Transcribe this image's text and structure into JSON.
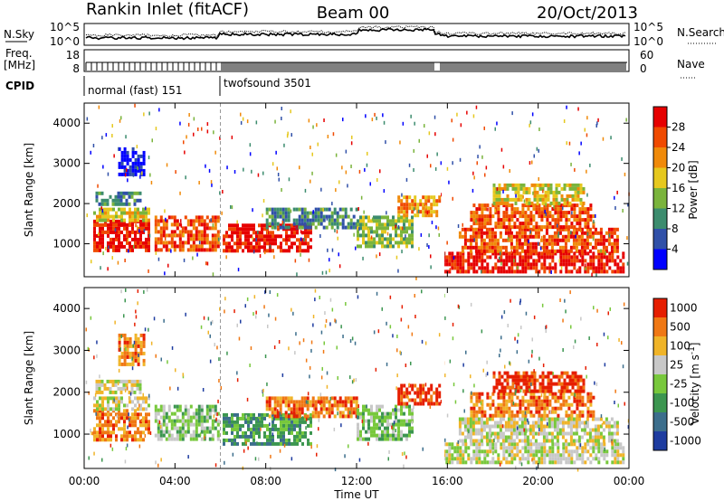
{
  "header": {
    "title_left": "Rankin Inlet (fitACF)",
    "title_center": "Beam 00",
    "title_right": "20/Oct/2013"
  },
  "strip_panels": {
    "sky": {
      "left_label": "N.Sky",
      "right_label": "N.Search",
      "left_ticks": [
        "10^5",
        "10^0"
      ],
      "right_ticks": [
        "10^5",
        "10^0"
      ]
    },
    "freq": {
      "left_label_line1": "Freq.",
      "left_label_line2": "[MHz]",
      "right_label": "Nave",
      "left_ticks": [
        "18",
        "8"
      ],
      "right_ticks": [
        "60",
        "0"
      ]
    },
    "cpid": {
      "label": "CPID",
      "modes": [
        {
          "name": "normal (fast) 151",
          "start_hour": 0.3
        },
        {
          "name": "twofsound 3501",
          "start_hour": 6.0
        }
      ]
    }
  },
  "chart_data": [
    {
      "type": "heatmap",
      "variable": "power",
      "ylabel": "Slant Range [km]",
      "yticks": [
        1000,
        2000,
        3000,
        4000
      ],
      "ylim": [
        180,
        4500
      ],
      "xlim": [
        0,
        24
      ],
      "colorbar": {
        "label": "Power [dB]",
        "ticks": [
          "4",
          "8",
          "12",
          "16",
          "20",
          "24",
          "28"
        ],
        "colors": [
          "#0000ff",
          "#3050a8",
          "#3c8c6e",
          "#7ab43c",
          "#e6c81e",
          "#f08a0a",
          "#f04a00",
          "#e60000"
        ]
      },
      "echo_regions": [
        {
          "x": [
            0.4,
            2.9
          ],
          "y": [
            850,
            1600
          ],
          "level": 7
        },
        {
          "x": [
            0.4,
            2.9
          ],
          "y": [
            1600,
            1900
          ],
          "level": 4
        },
        {
          "x": [
            0.5,
            2.5
          ],
          "y": [
            2000,
            2300
          ],
          "level": 2
        },
        {
          "x": [
            1.5,
            2.6
          ],
          "y": [
            2700,
            3400
          ],
          "level": 0
        },
        {
          "x": [
            3.1,
            5.9
          ],
          "y": [
            850,
            1700
          ],
          "level": 6
        },
        {
          "x": [
            6.1,
            10.0
          ],
          "y": [
            800,
            1500
          ],
          "level": 7
        },
        {
          "x": [
            8.0,
            12.0
          ],
          "y": [
            1400,
            1900
          ],
          "level": 2
        },
        {
          "x": [
            12.0,
            14.5
          ],
          "y": [
            900,
            1700
          ],
          "level": 3
        },
        {
          "x": [
            13.8,
            15.6
          ],
          "y": [
            1700,
            2200
          ],
          "level": 5
        },
        {
          "x": [
            15.8,
            23.8
          ],
          "y": [
            300,
            800
          ],
          "level": 7
        },
        {
          "x": [
            16.5,
            23.5
          ],
          "y": [
            800,
            1400
          ],
          "level": 6
        },
        {
          "x": [
            17.0,
            22.5
          ],
          "y": [
            1400,
            2000
          ],
          "level": 6
        },
        {
          "x": [
            18.0,
            22.0
          ],
          "y": [
            2000,
            2500
          ],
          "level": 4
        }
      ]
    },
    {
      "type": "heatmap",
      "variable": "velocity",
      "ylabel": "Slant Range [km]",
      "yticks": [
        1000,
        2000,
        3000,
        4000
      ],
      "ylim": [
        180,
        4500
      ],
      "xlim": [
        0,
        24
      ],
      "xticks": [
        "00:00",
        "04:00",
        "08:00",
        "12:00",
        "16:00",
        "20:00",
        "00:00"
      ],
      "xlabel": "Time UT",
      "colorbar": {
        "label": "Velocity [m s^-1]",
        "ticks": [
          "1000",
          "500",
          "100",
          "25",
          "-25",
          "-100",
          "-500",
          "-1000"
        ],
        "colors": [
          "#1e3ca0",
          "#3c6e8c",
          "#3c9650",
          "#78c83c",
          "#c8c8c8",
          "#f0b428",
          "#f07814",
          "#e61e00"
        ]
      },
      "echo_regions": [
        {
          "x": [
            0.4,
            2.9
          ],
          "y": [
            850,
            1600
          ],
          "level": 6
        },
        {
          "x": [
            0.4,
            2.9
          ],
          "y": [
            1600,
            1900
          ],
          "level": 4
        },
        {
          "x": [
            0.5,
            2.5
          ],
          "y": [
            2000,
            2300
          ],
          "level": 4
        },
        {
          "x": [
            1.5,
            2.6
          ],
          "y": [
            2700,
            3400
          ],
          "level": 6
        },
        {
          "x": [
            3.1,
            5.9
          ],
          "y": [
            850,
            1700
          ],
          "level": 3
        },
        {
          "x": [
            6.1,
            10.0
          ],
          "y": [
            800,
            1500
          ],
          "level": 2
        },
        {
          "x": [
            8.0,
            12.0
          ],
          "y": [
            1400,
            1900
          ],
          "level": 6
        },
        {
          "x": [
            12.0,
            14.5
          ],
          "y": [
            900,
            1700
          ],
          "level": 3
        },
        {
          "x": [
            13.8,
            15.6
          ],
          "y": [
            1700,
            2200
          ],
          "level": 7
        },
        {
          "x": [
            15.8,
            23.8
          ],
          "y": [
            300,
            800
          ],
          "level": 4
        },
        {
          "x": [
            16.5,
            23.5
          ],
          "y": [
            800,
            1400
          ],
          "level": 4
        },
        {
          "x": [
            17.0,
            22.5
          ],
          "y": [
            1400,
            2000
          ],
          "level": 6
        },
        {
          "x": [
            18.0,
            22.0
          ],
          "y": [
            2000,
            2500
          ],
          "level": 7
        }
      ]
    }
  ]
}
